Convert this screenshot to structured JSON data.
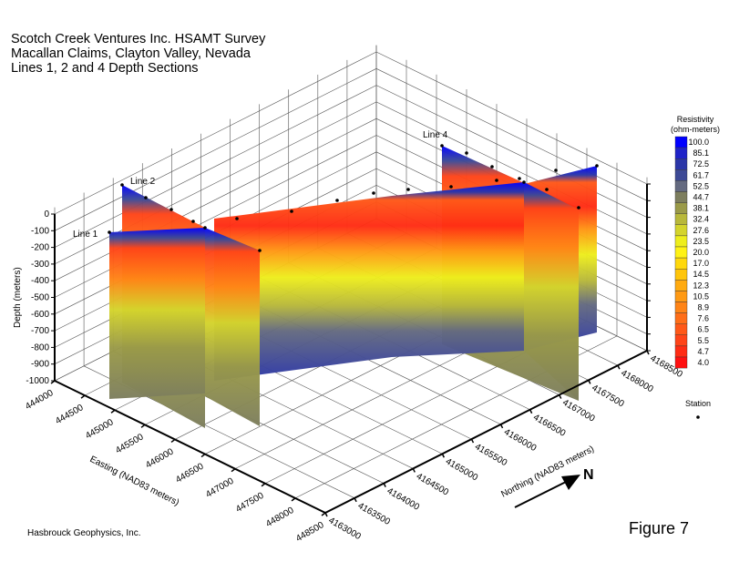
{
  "title_lines": [
    "Scotch Creek Ventures Inc. HSAMT Survey",
    "Macallan Claims, Clayton Valley, Nevada",
    "Lines 1, 2 and 4 Depth Sections"
  ],
  "credit": "Hasbrouck Geophysics, Inc.",
  "figure_label": "Figure 7",
  "north_label": "N",
  "station_legend": {
    "label": "Station",
    "icon": "dot"
  },
  "chart_data": {
    "type": "heatmap",
    "projection": "3d",
    "depth_axis": {
      "label": "Depth (meters)",
      "ticks": [
        0,
        -100,
        -200,
        -300,
        -400,
        -500,
        -600,
        -700,
        -800,
        -900,
        -1000
      ],
      "range": [
        -1000,
        0
      ]
    },
    "easting_axis": {
      "label": "Easting (NAD83 meters)",
      "ticks": [
        444000,
        444500,
        445000,
        445500,
        446000,
        446500,
        447000,
        447500,
        448000,
        448500
      ],
      "range": [
        444000,
        448500
      ]
    },
    "northing_axis": {
      "label": "Northing (NAD83 meters)",
      "ticks": [
        4163000,
        4163500,
        4164000,
        4164500,
        4165000,
        4165500,
        4166000,
        4166500,
        4167000,
        4167500,
        4168000,
        4168500
      ],
      "range": [
        4163000,
        4168500
      ]
    },
    "sections": [
      "Line 1",
      "Line 2",
      "Line 4"
    ],
    "colorbar": {
      "title_lines": [
        "Resistivity",
        "(ohm-meters)"
      ],
      "levels": [
        100.0,
        85.1,
        72.5,
        61.7,
        52.5,
        44.7,
        38.1,
        32.4,
        27.6,
        23.5,
        20.0,
        17.0,
        14.5,
        12.3,
        10.5,
        8.9,
        7.6,
        6.5,
        5.5,
        4.7,
        4.0
      ],
      "level_labels": [
        "100.0",
        "85.1",
        "72.5",
        "61.7",
        "52.5",
        "44.7",
        "38.1",
        "32.4",
        "27.6",
        "23.5",
        "20.0",
        "17.0",
        "14.5",
        "12.3",
        "10.5",
        "8.9",
        "7.6",
        "6.5",
        "5.5",
        "4.7",
        "4.0"
      ],
      "colors": [
        "#0000ff",
        "#1f23c8",
        "#2b36a8",
        "#3d4a96",
        "#646a80",
        "#7d7e5e",
        "#9a9a48",
        "#b8b83a",
        "#d4d42c",
        "#eeee1c",
        "#fff215",
        "#ffd80c",
        "#ffc50a",
        "#ffaa10",
        "#ff9a14",
        "#ff8416",
        "#ff6e18",
        "#ff5818",
        "#ff4418",
        "#ff2c14",
        "#ff1010"
      ]
    },
    "grid": true
  }
}
